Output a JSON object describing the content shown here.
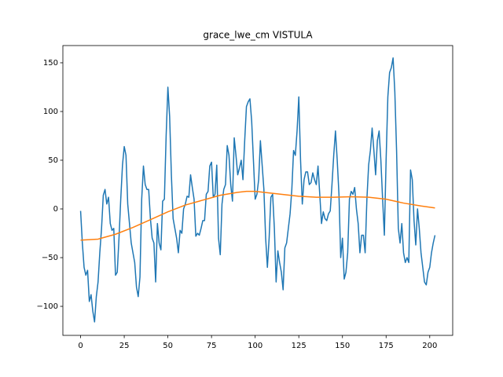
{
  "chart_data": {
    "type": "line",
    "title": "grace_lwe_cm VISTULA",
    "x": [
      0,
      1,
      2,
      3,
      4,
      5,
      6,
      7,
      8,
      9,
      10,
      11,
      12,
      13,
      14,
      15,
      16,
      17,
      18,
      19,
      20,
      21,
      22,
      23,
      24,
      25,
      26,
      27,
      28,
      29,
      30,
      31,
      32,
      33,
      34,
      35,
      36,
      37,
      38,
      39,
      40,
      41,
      42,
      43,
      44,
      45,
      46,
      47,
      48,
      49,
      50,
      51,
      52,
      53,
      54,
      55,
      56,
      57,
      58,
      59,
      60,
      61,
      62,
      63,
      64,
      65,
      66,
      67,
      68,
      69,
      70,
      71,
      72,
      73,
      74,
      75,
      76,
      77,
      78,
      79,
      80,
      81,
      82,
      83,
      84,
      85,
      86,
      87,
      88,
      89,
      90,
      91,
      92,
      93,
      94,
      95,
      96,
      97,
      98,
      99,
      100,
      101,
      102,
      103,
      104,
      105,
      106,
      107,
      108,
      109,
      110,
      111,
      112,
      113,
      114,
      115,
      116,
      117,
      118,
      119,
      120,
      121,
      122,
      123,
      124,
      125,
      126,
      127,
      128,
      129,
      130,
      131,
      132,
      133,
      134,
      135,
      136,
      137,
      138,
      139,
      140,
      141,
      142,
      143,
      144,
      145,
      146,
      147,
      148,
      149,
      150,
      151,
      152,
      153,
      154,
      155,
      156,
      157,
      158,
      159,
      160,
      161,
      162,
      163,
      164,
      165,
      166,
      167,
      168,
      169,
      170,
      171,
      172,
      173,
      174,
      175,
      176,
      177,
      178,
      179,
      180,
      181,
      182,
      183,
      184,
      185,
      186,
      187,
      188,
      189,
      190,
      191,
      192,
      193,
      194,
      195,
      196,
      197,
      198,
      199,
      200,
      201,
      202,
      203
    ],
    "series": [
      {
        "color": "#1f77b4",
        "values": [
          -2,
          -35,
          -60,
          -68,
          -63,
          -95,
          -88,
          -105,
          -116,
          -90,
          -75,
          -45,
          -20,
          14,
          20,
          5,
          12,
          -15,
          -22,
          -20,
          -68,
          -65,
          -30,
          10,
          45,
          64,
          55,
          5,
          -15,
          -35,
          -45,
          -55,
          -80,
          -90,
          -70,
          10,
          44,
          25,
          20,
          20,
          -10,
          -30,
          -35,
          -75,
          -15,
          -35,
          -42,
          8,
          10,
          75,
          125,
          95,
          35,
          -10,
          -20,
          -30,
          -45,
          -22,
          -25,
          0,
          5,
          13,
          12,
          35,
          22,
          10,
          -28,
          -25,
          -27,
          -20,
          -12,
          -12,
          15,
          18,
          44,
          48,
          12,
          15,
          45,
          -30,
          -47,
          5,
          20,
          25,
          65,
          55,
          25,
          8,
          73,
          55,
          35,
          42,
          50,
          30,
          70,
          105,
          110,
          113,
          90,
          50,
          10,
          15,
          30,
          70,
          45,
          20,
          -30,
          -60,
          -30,
          12,
          15,
          -20,
          -75,
          -43,
          -55,
          -65,
          -83,
          -40,
          -35,
          -20,
          -5,
          20,
          60,
          55,
          80,
          115,
          50,
          5,
          30,
          38,
          38,
          25,
          27,
          37,
          30,
          25,
          44,
          15,
          -15,
          -3,
          -10,
          -12,
          -5,
          -2,
          25,
          55,
          80,
          50,
          15,
          -50,
          -30,
          -72,
          -65,
          -45,
          10,
          18,
          15,
          22,
          0,
          -15,
          -45,
          -27,
          -27,
          -45,
          10,
          45,
          60,
          83,
          60,
          35,
          70,
          80,
          50,
          10,
          -27,
          50,
          115,
          140,
          145,
          155,
          120,
          60,
          -20,
          -35,
          -15,
          -45,
          -55,
          -50,
          -55,
          40,
          30,
          -12,
          -37,
          0,
          -20,
          -45,
          -60,
          -75,
          -78,
          -65,
          -60,
          -45,
          -35,
          -27
        ]
      },
      {
        "color": "#ff7f0e",
        "x": [
          0,
          10,
          20,
          30,
          40,
          50,
          60,
          70,
          80,
          90,
          95,
          100,
          105,
          115,
          125,
          135,
          145,
          155,
          165,
          175,
          185,
          195,
          203
        ],
        "values": [
          -32,
          -31,
          -26,
          -19,
          -11,
          -3,
          4,
          9,
          14,
          17,
          18,
          18,
          17,
          15,
          13,
          12,
          12,
          12.5,
          12,
          10,
          6,
          3,
          1
        ]
      }
    ],
    "xlim": [
      -10.15,
      213.15
    ],
    "ylim": [
      -129.8,
      167.7
    ],
    "xticks": [
      0,
      25,
      50,
      75,
      100,
      125,
      150,
      175,
      200
    ],
    "yticks": [
      {
        "value": -100,
        "label": "−100"
      },
      {
        "value": -50,
        "label": "−50"
      },
      0,
      50,
      100,
      150
    ]
  }
}
